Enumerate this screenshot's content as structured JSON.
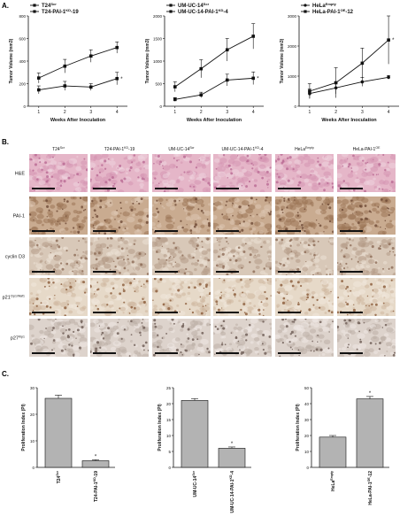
{
  "panel_labels": {
    "a": "A.",
    "b": "B.",
    "c": "C."
  },
  "colors": {
    "he": "#c98aa8",
    "pai": "#a07e65",
    "cyclin": "#b29a86",
    "p21": "#c6b29a",
    "p27": "#b5a8a0",
    "text": "#111111",
    "bar_fill": "#b3b3b3"
  },
  "chart_data": [
    {
      "type": "line",
      "ylabel": "Tumor Volume (mm3)",
      "xlabel": "Weeks After Inoculation",
      "x": [
        1,
        2,
        3,
        4
      ],
      "ylim": [
        0,
        800
      ],
      "yticks": [
        0,
        200,
        400,
        600,
        800
      ],
      "series": [
        {
          "name": "T24Scr",
          "marker": "square",
          "values": [
            250,
            355,
            445,
            520
          ],
          "err": [
            45,
            60,
            55,
            50
          ]
        },
        {
          "name": "T24-PAI-1KD-19",
          "marker": "square",
          "values": [
            145,
            180,
            170,
            245
          ],
          "err": [
            35,
            40,
            30,
            55
          ]
        }
      ],
      "legend_main": [
        "T24",
        "T24-PAI-1",
        "-19"
      ],
      "legend_sup": [
        "Scr",
        "KD"
      ],
      "annotation": "*"
    },
    {
      "type": "line",
      "ylabel": "Tumor Volume (mm3)",
      "xlabel": "Weeks After Inoculation",
      "x": [
        1,
        2,
        3,
        4
      ],
      "ylim": [
        0,
        2000
      ],
      "yticks": [
        0,
        500,
        1000,
        1500,
        2000
      ],
      "series": [
        {
          "name": "UM-UC-14Scr",
          "marker": "square",
          "values": [
            430,
            830,
            1250,
            1550
          ],
          "err": [
            110,
            200,
            250,
            280
          ]
        },
        {
          "name": "UM-UC-14-PAI-1KD-4",
          "marker": "square",
          "values": [
            150,
            250,
            580,
            620
          ],
          "err": [
            40,
            60,
            130,
            140
          ]
        }
      ],
      "legend_main": [
        "UM-UC-14",
        "UM-UC-14-PAI-1",
        "-4"
      ],
      "legend_sup": [
        "Scr",
        "KD"
      ],
      "annotation": "*"
    },
    {
      "type": "line",
      "ylabel": "Tumor Volume (mm3)",
      "xlabel": "Weeks After Inoculation",
      "x": [
        1,
        2,
        3,
        4
      ],
      "ylim": [
        0,
        3000
      ],
      "yticks": [
        0,
        1000,
        2000,
        3000
      ],
      "series": [
        {
          "name": "HeLaEmpty",
          "marker": "circle",
          "values": [
            420,
            610,
            810,
            960
          ],
          "err": [
            150,
            200,
            150,
            60
          ]
        },
        {
          "name": "HeLa-PAI-1OE-12",
          "marker": "square",
          "values": [
            500,
            780,
            1430,
            2200
          ],
          "err": [
            250,
            500,
            500,
            800
          ]
        }
      ],
      "legend_main": [
        "HeLa",
        "HeLa-PAI-1",
        "-12"
      ],
      "legend_sup": [
        "Empty",
        "OE"
      ],
      "annotation": "*"
    },
    {
      "type": "bar",
      "ylabel": "Proliferation Index (PI)",
      "categories": [
        "T24Scr",
        "T24-PAI-1KD-19"
      ],
      "cat_main": [
        "T24",
        "T24-PAI-1",
        "-19"
      ],
      "cat_sup": [
        "Scr",
        "KD"
      ],
      "values": [
        26,
        2.5
      ],
      "err": [
        1.2,
        0.4
      ],
      "ylim": [
        0,
        30
      ],
      "yticks": [
        0,
        10,
        20,
        30
      ],
      "annotation": "*"
    },
    {
      "type": "bar",
      "ylabel": "Proliferation Index (PI)",
      "categories": [
        "UM-UC-14Scr",
        "UM-UC-14-PAI-1KD-4"
      ],
      "cat_main": [
        "UM-UC-14",
        "UM-UC-14-PAI-1",
        "-4"
      ],
      "cat_sup": [
        "Scr",
        "KD"
      ],
      "values": [
        21,
        6
      ],
      "err": [
        0.6,
        0.4
      ],
      "ylim": [
        0,
        25
      ],
      "yticks": [
        0,
        5,
        10,
        15,
        20,
        25
      ],
      "annotation": "*"
    },
    {
      "type": "bar",
      "ylabel": "Proliferation Index (PI)",
      "categories": [
        "HeLaEmpty",
        "HeLa-PAI-1OE-12"
      ],
      "cat_main": [
        "HeLa",
        "HeLa-PAI-1",
        "-12"
      ],
      "cat_sup": [
        "Empty",
        "OE"
      ],
      "values": [
        19,
        43
      ],
      "err": [
        1,
        1.5
      ],
      "ylim": [
        0,
        50
      ],
      "yticks": [
        0,
        10,
        20,
        30,
        40,
        50
      ],
      "annotation": "*"
    }
  ],
  "ihc": {
    "columns": [
      {
        "main": "T24",
        "sup": "Scr",
        "rest": ""
      },
      {
        "main": "T24-PAI-1",
        "sup": "KD",
        "rest": "-19"
      },
      {
        "main": "UM-UC-14",
        "sup": "Scr",
        "rest": ""
      },
      {
        "main": "UM-UC-14-PAI-1",
        "sup": "KD",
        "rest": "-4"
      },
      {
        "main": "HeLa",
        "sup": "Empty",
        "rest": ""
      },
      {
        "main": "HeLa-PAI-1",
        "sup": "OE",
        "rest": ""
      }
    ],
    "rows": [
      {
        "main": "H&E",
        "sup": ""
      },
      {
        "main": "PAI-1",
        "sup": ""
      },
      {
        "main": "cyclin D3",
        "sup": ""
      },
      {
        "main": "p21",
        "sup": "Cip1/Waf1"
      },
      {
        "main": "p27",
        "sup": "Kip1"
      }
    ]
  }
}
